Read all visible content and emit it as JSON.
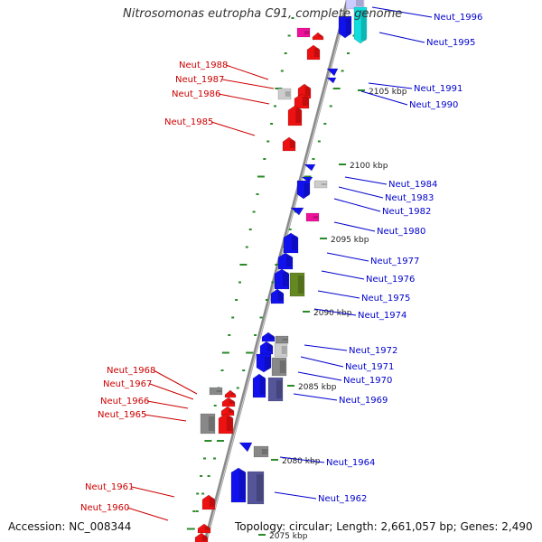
{
  "title": "Nitrosomonas eutropha C91, complete genome",
  "accession": "Accession: NC_008344",
  "topology": "Topology: circular; Length: 2,661,057 bp; Genes: 2,490",
  "colors": {
    "backbone": "#8a8a8a",
    "ticks": "#2a8a2a",
    "red": "#ee1111",
    "blue": "#1111ee",
    "gray": "#888888",
    "lightgray": "#cccccc",
    "magenta": "#ee1199",
    "cyan": "#11dddd",
    "olive": "#668822",
    "slate": "#555599",
    "lavender": "#ccccff",
    "label_red": "#cc0000",
    "label_blue": "#0000cc"
  },
  "kbp_ticks": [
    "2075 kbp",
    "2080 kbp",
    "2085 kbp",
    "2090 kbp",
    "2095 kbp",
    "2100 kbp",
    "2105 kbp"
  ],
  "left_labels": [
    "Neut_1988",
    "Neut_1987",
    "Neut_1986",
    "Neut_1985",
    "Neut_1968",
    "Neut_1967",
    "Neut_1966",
    "Neut_1965",
    "Neut_1961",
    "Neut_1960"
  ],
  "right_labels": [
    "Neut_1996",
    "Neut_1995",
    "Neut_1991",
    "Neut_1990",
    "Neut_1984",
    "Neut_1983",
    "Neut_1982",
    "Neut_1980",
    "Neut_1977",
    "Neut_1976",
    "Neut_1975",
    "Neut_1974",
    "Neut_1972",
    "Neut_1971",
    "Neut_1970",
    "Neut_1969",
    "Neut_1964",
    "Neut_1962"
  ]
}
